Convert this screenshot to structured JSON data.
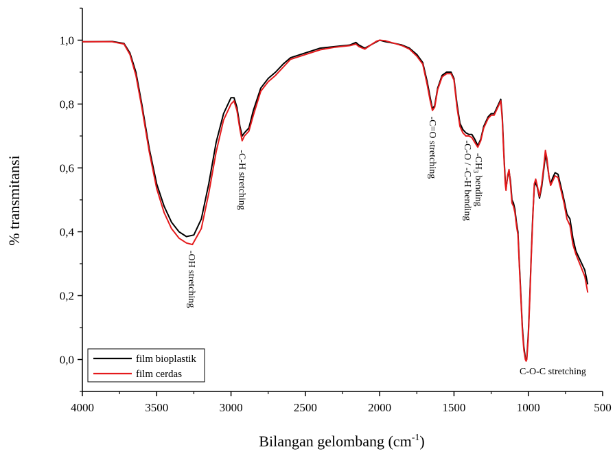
{
  "chart_data": {
    "type": "line",
    "title": "",
    "xlabel": "Bilangan gelombang (cm",
    "xlabel_sup": "-1",
    "xlabel_close": ")",
    "ylabel": "% transmitansi",
    "xlim": [
      4000,
      500
    ],
    "ylim": [
      -0.1,
      1.1
    ],
    "x_ticks": [
      4000,
      3500,
      3000,
      2500,
      2000,
      1500,
      1000,
      500
    ],
    "x_tick_labels": [
      "4000",
      "3500",
      "3000",
      "2500",
      "2000",
      "1500",
      "1000",
      "500"
    ],
    "y_ticks": [
      0.0,
      0.2,
      0.4,
      0.6,
      0.8,
      1.0
    ],
    "y_tick_labels": [
      "0,0",
      "0,2",
      "0,4",
      "0,6",
      "0,8",
      "1,0"
    ],
    "grid": false,
    "legend_position": "bottom-left",
    "series": [
      {
        "name": "film bioplastik",
        "color": "#000000",
        "points": [
          [
            4000,
            0.995
          ],
          [
            3800,
            0.996
          ],
          [
            3720,
            0.99
          ],
          [
            3680,
            0.96
          ],
          [
            3640,
            0.9
          ],
          [
            3600,
            0.8
          ],
          [
            3550,
            0.66
          ],
          [
            3500,
            0.55
          ],
          [
            3450,
            0.48
          ],
          [
            3400,
            0.43
          ],
          [
            3350,
            0.4
          ],
          [
            3300,
            0.385
          ],
          [
            3250,
            0.39
          ],
          [
            3200,
            0.44
          ],
          [
            3150,
            0.55
          ],
          [
            3100,
            0.68
          ],
          [
            3050,
            0.77
          ],
          [
            3000,
            0.82
          ],
          [
            2980,
            0.82
          ],
          [
            2960,
            0.79
          ],
          [
            2940,
            0.73
          ],
          [
            2925,
            0.7
          ],
          [
            2910,
            0.71
          ],
          [
            2880,
            0.725
          ],
          [
            2850,
            0.78
          ],
          [
            2800,
            0.85
          ],
          [
            2750,
            0.88
          ],
          [
            2700,
            0.9
          ],
          [
            2650,
            0.925
          ],
          [
            2600,
            0.945
          ],
          [
            2500,
            0.96
          ],
          [
            2400,
            0.975
          ],
          [
            2300,
            0.98
          ],
          [
            2200,
            0.985
          ],
          [
            2160,
            0.993
          ],
          [
            2140,
            0.985
          ],
          [
            2100,
            0.975
          ],
          [
            2060,
            0.985
          ],
          [
            2020,
            0.995
          ],
          [
            2000,
            1.0
          ],
          [
            1960,
            0.995
          ],
          [
            1900,
            0.99
          ],
          [
            1850,
            0.985
          ],
          [
            1800,
            0.975
          ],
          [
            1750,
            0.955
          ],
          [
            1710,
            0.93
          ],
          [
            1680,
            0.87
          ],
          [
            1660,
            0.82
          ],
          [
            1645,
            0.785
          ],
          [
            1630,
            0.795
          ],
          [
            1610,
            0.85
          ],
          [
            1580,
            0.89
          ],
          [
            1550,
            0.9
          ],
          [
            1520,
            0.9
          ],
          [
            1500,
            0.88
          ],
          [
            1480,
            0.8
          ],
          [
            1460,
            0.74
          ],
          [
            1440,
            0.72
          ],
          [
            1420,
            0.71
          ],
          [
            1400,
            0.705
          ],
          [
            1380,
            0.705
          ],
          [
            1360,
            0.69
          ],
          [
            1340,
            0.67
          ],
          [
            1320,
            0.69
          ],
          [
            1300,
            0.73
          ],
          [
            1270,
            0.76
          ],
          [
            1250,
            0.77
          ],
          [
            1230,
            0.77
          ],
          [
            1200,
            0.8
          ],
          [
            1185,
            0.815
          ],
          [
            1175,
            0.76
          ],
          [
            1165,
            0.65
          ],
          [
            1155,
            0.56
          ],
          [
            1150,
            0.535
          ],
          [
            1140,
            0.57
          ],
          [
            1130,
            0.59
          ],
          [
            1120,
            0.56
          ],
          [
            1110,
            0.5
          ],
          [
            1100,
            0.49
          ],
          [
            1090,
            0.47
          ],
          [
            1080,
            0.43
          ],
          [
            1070,
            0.4
          ],
          [
            1060,
            0.3
          ],
          [
            1050,
            0.2
          ],
          [
            1040,
            0.1
          ],
          [
            1030,
            0.04
          ],
          [
            1020,
            0.005
          ],
          [
            1015,
            0.0
          ],
          [
            1010,
            0.005
          ],
          [
            1000,
            0.08
          ],
          [
            990,
            0.2
          ],
          [
            980,
            0.33
          ],
          [
            970,
            0.45
          ],
          [
            960,
            0.54
          ],
          [
            950,
            0.555
          ],
          [
            940,
            0.54
          ],
          [
            925,
            0.505
          ],
          [
            910,
            0.54
          ],
          [
            895,
            0.6
          ],
          [
            885,
            0.64
          ],
          [
            875,
            0.62
          ],
          [
            860,
            0.57
          ],
          [
            850,
            0.55
          ],
          [
            835,
            0.57
          ],
          [
            820,
            0.585
          ],
          [
            800,
            0.58
          ],
          [
            780,
            0.54
          ],
          [
            760,
            0.5
          ],
          [
            740,
            0.455
          ],
          [
            720,
            0.44
          ],
          [
            700,
            0.38
          ],
          [
            680,
            0.34
          ],
          [
            650,
            0.31
          ],
          [
            620,
            0.28
          ],
          [
            600,
            0.235
          ]
        ]
      },
      {
        "name": "film cerdas",
        "color": "#e41a1c",
        "points": [
          [
            4000,
            0.995
          ],
          [
            3800,
            0.995
          ],
          [
            3720,
            0.988
          ],
          [
            3680,
            0.955
          ],
          [
            3640,
            0.89
          ],
          [
            3600,
            0.79
          ],
          [
            3550,
            0.65
          ],
          [
            3500,
            0.535
          ],
          [
            3450,
            0.46
          ],
          [
            3400,
            0.41
          ],
          [
            3350,
            0.38
          ],
          [
            3300,
            0.365
          ],
          [
            3260,
            0.36
          ],
          [
            3200,
            0.41
          ],
          [
            3150,
            0.52
          ],
          [
            3100,
            0.65
          ],
          [
            3050,
            0.75
          ],
          [
            3000,
            0.8
          ],
          [
            2980,
            0.81
          ],
          [
            2960,
            0.78
          ],
          [
            2940,
            0.72
          ],
          [
            2925,
            0.685
          ],
          [
            2910,
            0.7
          ],
          [
            2880,
            0.715
          ],
          [
            2850,
            0.765
          ],
          [
            2800,
            0.84
          ],
          [
            2750,
            0.87
          ],
          [
            2700,
            0.89
          ],
          [
            2650,
            0.915
          ],
          [
            2600,
            0.94
          ],
          [
            2500,
            0.955
          ],
          [
            2400,
            0.97
          ],
          [
            2300,
            0.978
          ],
          [
            2200,
            0.983
          ],
          [
            2160,
            0.988
          ],
          [
            2140,
            0.98
          ],
          [
            2100,
            0.972
          ],
          [
            2060,
            0.985
          ],
          [
            2020,
            0.997
          ],
          [
            2000,
            1.0
          ],
          [
            1960,
            0.998
          ],
          [
            1900,
            0.99
          ],
          [
            1850,
            0.983
          ],
          [
            1800,
            0.972
          ],
          [
            1750,
            0.95
          ],
          [
            1710,
            0.925
          ],
          [
            1680,
            0.86
          ],
          [
            1660,
            0.81
          ],
          [
            1645,
            0.78
          ],
          [
            1630,
            0.79
          ],
          [
            1610,
            0.845
          ],
          [
            1580,
            0.885
          ],
          [
            1550,
            0.895
          ],
          [
            1520,
            0.895
          ],
          [
            1500,
            0.875
          ],
          [
            1480,
            0.79
          ],
          [
            1460,
            0.73
          ],
          [
            1440,
            0.71
          ],
          [
            1420,
            0.7
          ],
          [
            1400,
            0.7
          ],
          [
            1380,
            0.695
          ],
          [
            1360,
            0.68
          ],
          [
            1340,
            0.665
          ],
          [
            1320,
            0.685
          ],
          [
            1300,
            0.725
          ],
          [
            1270,
            0.755
          ],
          [
            1250,
            0.765
          ],
          [
            1230,
            0.765
          ],
          [
            1200,
            0.795
          ],
          [
            1185,
            0.81
          ],
          [
            1175,
            0.75
          ],
          [
            1165,
            0.64
          ],
          [
            1155,
            0.55
          ],
          [
            1150,
            0.53
          ],
          [
            1140,
            0.575
          ],
          [
            1130,
            0.595
          ],
          [
            1120,
            0.55
          ],
          [
            1110,
            0.49
          ],
          [
            1100,
            0.48
          ],
          [
            1090,
            0.46
          ],
          [
            1080,
            0.42
          ],
          [
            1070,
            0.39
          ],
          [
            1060,
            0.29
          ],
          [
            1050,
            0.19
          ],
          [
            1040,
            0.09
          ],
          [
            1030,
            0.03
          ],
          [
            1020,
            0.0
          ],
          [
            1015,
            -0.005
          ],
          [
            1010,
            0.0
          ],
          [
            1000,
            0.07
          ],
          [
            990,
            0.19
          ],
          [
            980,
            0.32
          ],
          [
            970,
            0.44
          ],
          [
            960,
            0.55
          ],
          [
            950,
            0.565
          ],
          [
            940,
            0.545
          ],
          [
            925,
            0.51
          ],
          [
            910,
            0.55
          ],
          [
            895,
            0.61
          ],
          [
            885,
            0.655
          ],
          [
            875,
            0.63
          ],
          [
            860,
            0.57
          ],
          [
            850,
            0.545
          ],
          [
            835,
            0.56
          ],
          [
            820,
            0.575
          ],
          [
            800,
            0.57
          ],
          [
            780,
            0.53
          ],
          [
            760,
            0.49
          ],
          [
            740,
            0.44
          ],
          [
            720,
            0.42
          ],
          [
            700,
            0.36
          ],
          [
            680,
            0.33
          ],
          [
            650,
            0.295
          ],
          [
            620,
            0.26
          ],
          [
            600,
            0.21
          ]
        ]
      }
    ],
    "annotations": [
      {
        "text": "-OH stretching",
        "x": 3270,
        "y": 0.35,
        "rotate": 90
      },
      {
        "text": "-C-H stretching",
        "x": 2930,
        "y": 0.665,
        "rotate": 90
      },
      {
        "text": "-C=O stretching",
        "x": 1650,
        "y": 0.77,
        "rotate": 90
      },
      {
        "text": "-C-O / -C-H bending",
        "x": 1415,
        "y": 0.695,
        "rotate": 90
      },
      {
        "text": "-CH",
        "sub": "3",
        "tail": " bending",
        "x": 1340,
        "y": 0.655,
        "rotate": 90
      },
      {
        "text": "C-O-C stretching",
        "x": 835,
        "y": -0.005,
        "rotate": 0
      }
    ]
  }
}
